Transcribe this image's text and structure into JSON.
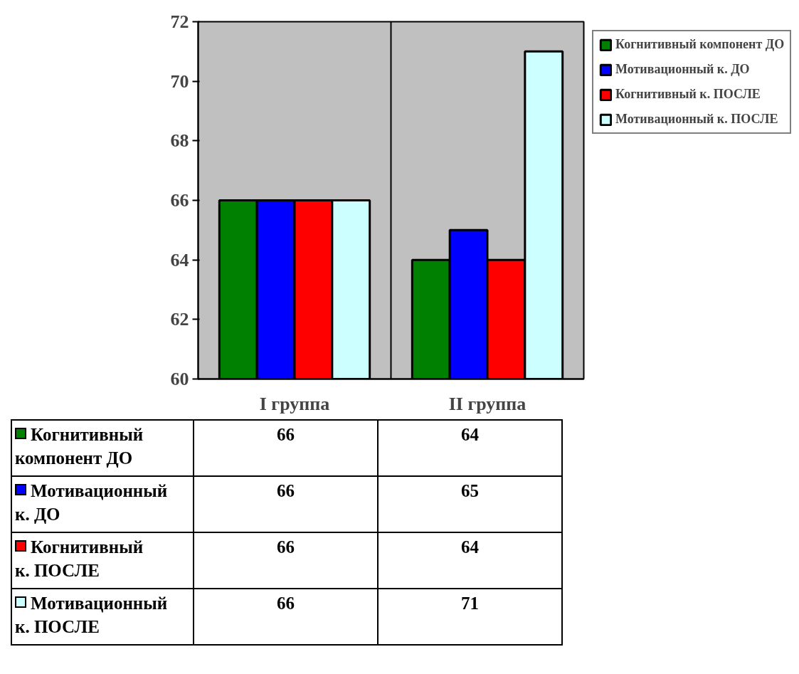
{
  "chart_data": {
    "type": "bar",
    "categories": [
      "I группа",
      "II группа"
    ],
    "series": [
      {
        "name": "Когнитивный компонент ДО",
        "color": "#008000",
        "values": [
          66,
          64
        ]
      },
      {
        "name": "Мотивационный к. ДО",
        "color": "#0000ff",
        "values": [
          66,
          65
        ]
      },
      {
        "name": "Когнитивный к. ПОСЛЕ",
        "color": "#ff0000",
        "values": [
          66,
          64
        ]
      },
      {
        "name": "Мотивационный к. ПОСЛЕ",
        "color": "#ccffff",
        "values": [
          66,
          71
        ]
      }
    ],
    "ylim": [
      60,
      72
    ],
    "yticks": [
      60,
      62,
      64,
      66,
      68,
      70,
      72
    ],
    "grid": false,
    "legend": "right",
    "data_labels": true
  }
}
